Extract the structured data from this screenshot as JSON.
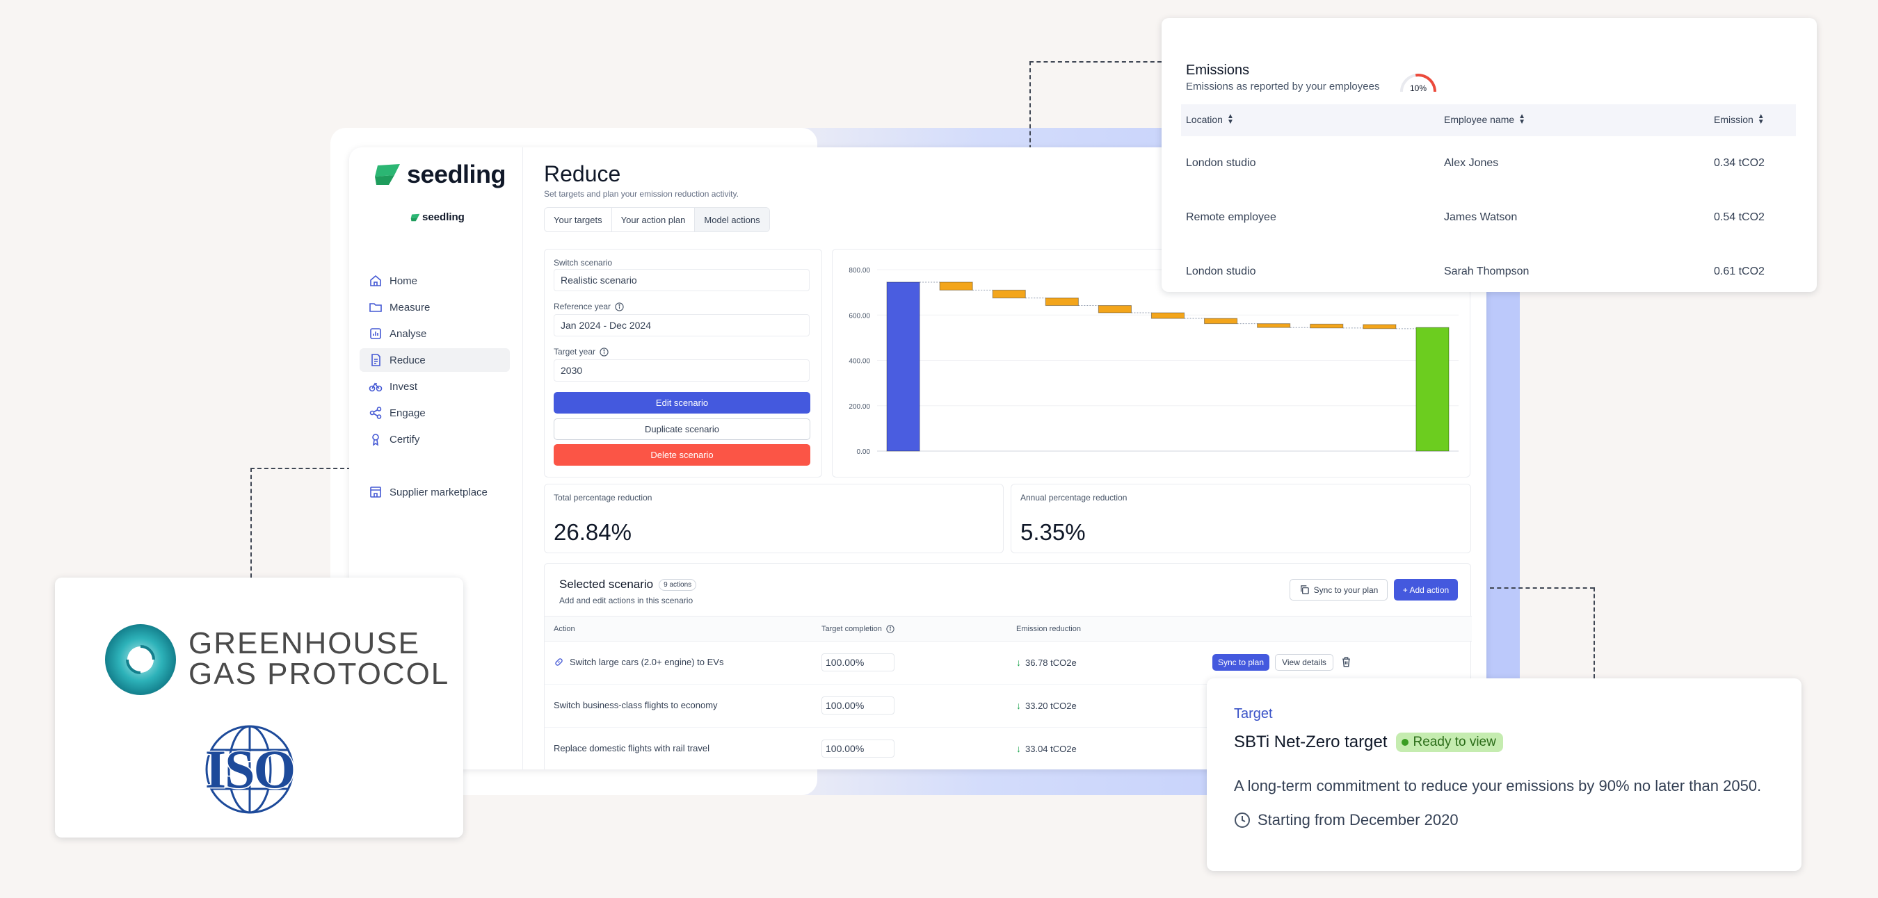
{
  "app": {
    "logo": "seedling",
    "logo_small": "seedling",
    "nav": [
      {
        "label": "Home",
        "icon": "home-icon"
      },
      {
        "label": "Measure",
        "icon": "folder-icon"
      },
      {
        "label": "Analyse",
        "icon": "analyse-icon"
      },
      {
        "label": "Reduce",
        "icon": "document-icon"
      },
      {
        "label": "Invest",
        "icon": "bicycle-icon"
      },
      {
        "label": "Engage",
        "icon": "share-icon"
      },
      {
        "label": "Certify",
        "icon": "award-icon"
      },
      {
        "label": "Supplier marketplace",
        "icon": "store-icon"
      }
    ]
  },
  "page": {
    "title": "Reduce",
    "subtitle": "Set targets and plan your emission reduction activity.",
    "tabs": [
      "Your targets",
      "Your action plan",
      "Model actions"
    ]
  },
  "form": {
    "switch_label": "Switch scenario",
    "switch_value": "Realistic scenario",
    "ref_label": "Reference year",
    "ref_value": "Jan 2024 - Dec 2024",
    "target_label": "Target year",
    "target_value": "2030",
    "edit": "Edit scenario",
    "duplicate": "Duplicate scenario",
    "delete": "Delete scenario"
  },
  "chart_data": {
    "type": "bar",
    "subtype": "waterfall",
    "title": "",
    "xlabel": "",
    "ylabel": "",
    "ylim": [
      0,
      800
    ],
    "yticks": [
      "0.00",
      "200.00",
      "400.00",
      "600.00",
      "800.00"
    ],
    "bars": [
      {
        "kind": "start",
        "base": 0,
        "top": 745
      },
      {
        "kind": "step",
        "base": 710,
        "top": 745
      },
      {
        "kind": "step",
        "base": 675,
        "top": 710
      },
      {
        "kind": "step",
        "base": 642,
        "top": 675
      },
      {
        "kind": "step",
        "base": 610,
        "top": 642
      },
      {
        "kind": "step",
        "base": 585,
        "top": 610
      },
      {
        "kind": "step",
        "base": 562,
        "top": 585
      },
      {
        "kind": "step",
        "base": 545,
        "top": 562
      },
      {
        "kind": "step",
        "base": 543,
        "top": 560
      },
      {
        "kind": "step",
        "base": 540,
        "top": 558
      },
      {
        "kind": "end",
        "base": 0,
        "top": 545
      }
    ],
    "colors": {
      "start": "#4a5de0",
      "step": "#f3a51b",
      "end": "#6ccd1f"
    }
  },
  "stats": {
    "total_label": "Total percentage reduction",
    "total_value": "26.84%",
    "annual_label": "Annual percentage reduction",
    "annual_value": "5.35%"
  },
  "scenario": {
    "title": "Selected scenario",
    "badge": "9 actions",
    "subtitle": "Add and edit actions in this scenario",
    "sync_btn": "Sync to your plan",
    "add_btn": "+ Add action",
    "columns": [
      "Action",
      "Target completion",
      "Emission reduction"
    ],
    "rows": [
      {
        "action": "Switch large cars (2.0+ engine) to EVs",
        "completion": "100.00%",
        "reduction": "36.78 tCO2e"
      },
      {
        "action": "Switch business-class flights to economy",
        "completion": "100.00%",
        "reduction": "33.20 tCO2e"
      },
      {
        "action": "Replace domestic flights with rail travel",
        "completion": "100.00%",
        "reduction": "33.04 tCO2e"
      }
    ],
    "row_sync": "Sync to plan",
    "row_view": "View details"
  },
  "emissions": {
    "title": "Emissions",
    "subtitle": "Emissions as reported by your employees",
    "gauge_label": "10%",
    "gauge_value": 10,
    "columns": [
      "Location",
      "Employee name",
      "Emission"
    ],
    "rows": [
      {
        "location": "London studio",
        "name": "Alex Jones",
        "emission": "0.34 tCO2"
      },
      {
        "location": "Remote employee",
        "name": "James Watson",
        "emission": "0.54 tCO2"
      },
      {
        "location": "London studio",
        "name": "Sarah Thompson",
        "emission": "0.61 tCO2"
      }
    ]
  },
  "standards": {
    "ghg_line1": "GREENHOUSE",
    "ghg_line2": "GAS PROTOCOL",
    "iso": "ISO"
  },
  "target": {
    "label": "Target",
    "title": "SBTi Net-Zero target",
    "badge": "Ready to view",
    "description": "A long-term commitment to reduce your emissions by 90% no later than 2050.",
    "start": "Starting from December 2020"
  }
}
